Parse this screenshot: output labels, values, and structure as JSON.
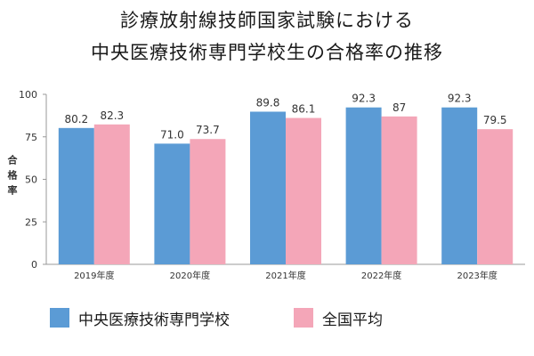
{
  "title_line1": "診療放射線技師国家試験における",
  "title_line2": "中央医療技術専門学校生の合格率の推移",
  "colors": {
    "school": "#5b9bd5",
    "national": "#f4a6b8",
    "axis": "#999999",
    "text": "#333333"
  },
  "chart_data": {
    "type": "bar",
    "ylabel": "合格率",
    "ylim": [
      0,
      100
    ],
    "yticks": [
      "0",
      "25",
      "50",
      "75",
      "100"
    ],
    "ytick_values": [
      0,
      25,
      50,
      75,
      100
    ],
    "categories": [
      "2019年度",
      "2020年度",
      "2021年度",
      "2022年度",
      "2023年度"
    ],
    "series": [
      {
        "name": "中央医療技術専門学校",
        "values": [
          80.2,
          71.0,
          89.8,
          92.3,
          92.3
        ],
        "labels": [
          "80.2",
          "71.0",
          "89.8",
          "92.3",
          "92.3"
        ]
      },
      {
        "name": "全国平均",
        "values": [
          82.3,
          73.7,
          86.1,
          87,
          79.5
        ],
        "labels": [
          "82.3",
          "73.7",
          "86.1",
          "87",
          "79.5"
        ]
      }
    ],
    "legend": "bottom"
  }
}
